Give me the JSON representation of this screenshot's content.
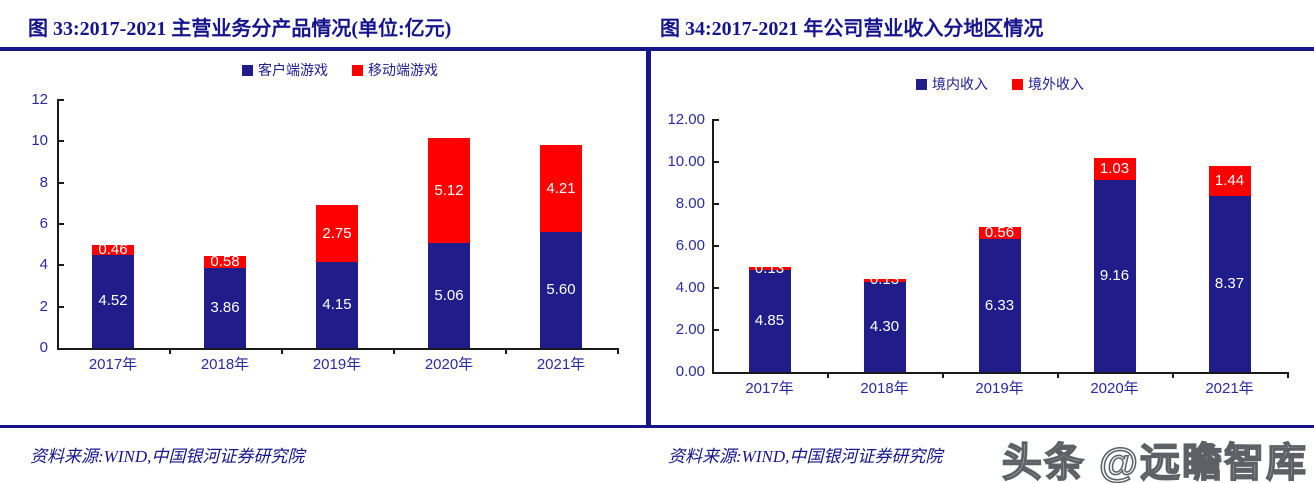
{
  "figures": [
    {
      "title": "图 33:2017-2021 主营业务分产品情况(单位:亿元)",
      "source": "资料来源:WIND,中国银河证券研究院"
    },
    {
      "title": "图 34:2017-2021 年公司营业收入分地区情况",
      "source": "资料来源:WIND,中国银河证券研究院"
    }
  ],
  "watermark": "头条 @远瞻智库",
  "colors": {
    "title_navy": "#16158c",
    "bar_blue": "#201d8a",
    "bar_red": "#fe0000",
    "axis_black": "#1a1a1a",
    "tick_label_navy": "#2b2b9e",
    "watermark_gray": "#5d6165"
  },
  "chart_data": [
    {
      "type": "bar",
      "stacked": true,
      "title": "图 33:2017-2021 主营业务分产品情况(单位:亿元)",
      "categories": [
        "2017年",
        "2018年",
        "2019年",
        "2020年",
        "2021年"
      ],
      "series": [
        {
          "name": "客户端游戏",
          "color": "#201d8a",
          "values": [
            4.52,
            3.86,
            4.15,
            5.06,
            5.6
          ]
        },
        {
          "name": "移动端游戏",
          "color": "#fe0000",
          "values": [
            0.46,
            0.58,
            2.75,
            5.12,
            4.21
          ]
        }
      ],
      "ylim": [
        0,
        12
      ],
      "y_ticks": [
        "12",
        "10",
        "8",
        "6",
        "4",
        "2",
        "0"
      ],
      "legend_position": "top",
      "grid": false,
      "data_labels": true,
      "label_decimals": 2
    },
    {
      "type": "bar",
      "stacked": true,
      "title": "图 34:2017-2021 年公司营业收入分地区情况",
      "categories": [
        "2017年",
        "2018年",
        "2019年",
        "2020年",
        "2021年"
      ],
      "series": [
        {
          "name": "境内收入",
          "color": "#201d8a",
          "values": [
            4.85,
            4.3,
            6.33,
            9.16,
            8.37
          ]
        },
        {
          "name": "境外收入",
          "color": "#fe0000",
          "values": [
            0.13,
            0.13,
            0.56,
            1.03,
            1.44
          ]
        }
      ],
      "ylim": [
        0,
        12
      ],
      "y_ticks": [
        "12.00",
        "10.00",
        "8.00",
        "6.00",
        "4.00",
        "2.00",
        "0.00"
      ],
      "legend_position": "top",
      "grid": false,
      "data_labels": true,
      "label_decimals": 2
    }
  ]
}
